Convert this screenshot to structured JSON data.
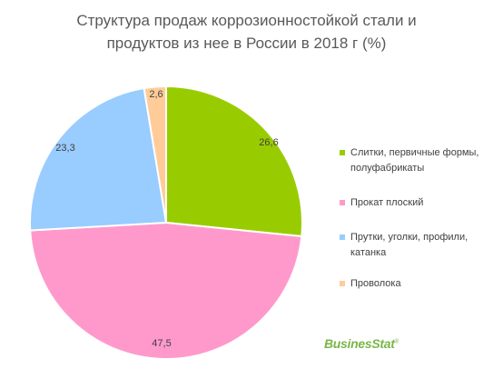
{
  "title_lines": [
    "Структура продаж коррозионностойкой стали и",
    "продуктов из нее в России в 2018 г (%)"
  ],
  "chart_data": {
    "type": "pie",
    "title": "Структура продаж коррозионностойкой стали и продуктов из нее в России в 2018 г (%)",
    "categories": [
      "Слитки, первичные формы, полуфабрикаты",
      "Прокат плоский",
      "Прутки, уголки, профили, катанка",
      "Проволока"
    ],
    "values": [
      26.6,
      47.5,
      23.3,
      2.6
    ],
    "labels": [
      "26,6",
      "47,5",
      "23,3",
      "2,6"
    ],
    "colors": [
      "#99cc00",
      "#ff99cc",
      "#99ccff",
      "#ffcc99"
    ],
    "legend_position": "right"
  },
  "legend": {
    "items": [
      {
        "lines": [
          "Слитки, первичные формы,",
          "полуфабрикаты"
        ],
        "color": "#99cc00"
      },
      {
        "lines": [
          "Прокат плоский"
        ],
        "color": "#ff99cc"
      },
      {
        "lines": [
          "Прутки, уголки, профили,",
          "катанка"
        ],
        "color": "#99ccff"
      },
      {
        "lines": [
          "Проволока"
        ],
        "color": "#ffcc99"
      }
    ]
  },
  "logo": {
    "text": "BusinesStat",
    "mark": "®"
  }
}
